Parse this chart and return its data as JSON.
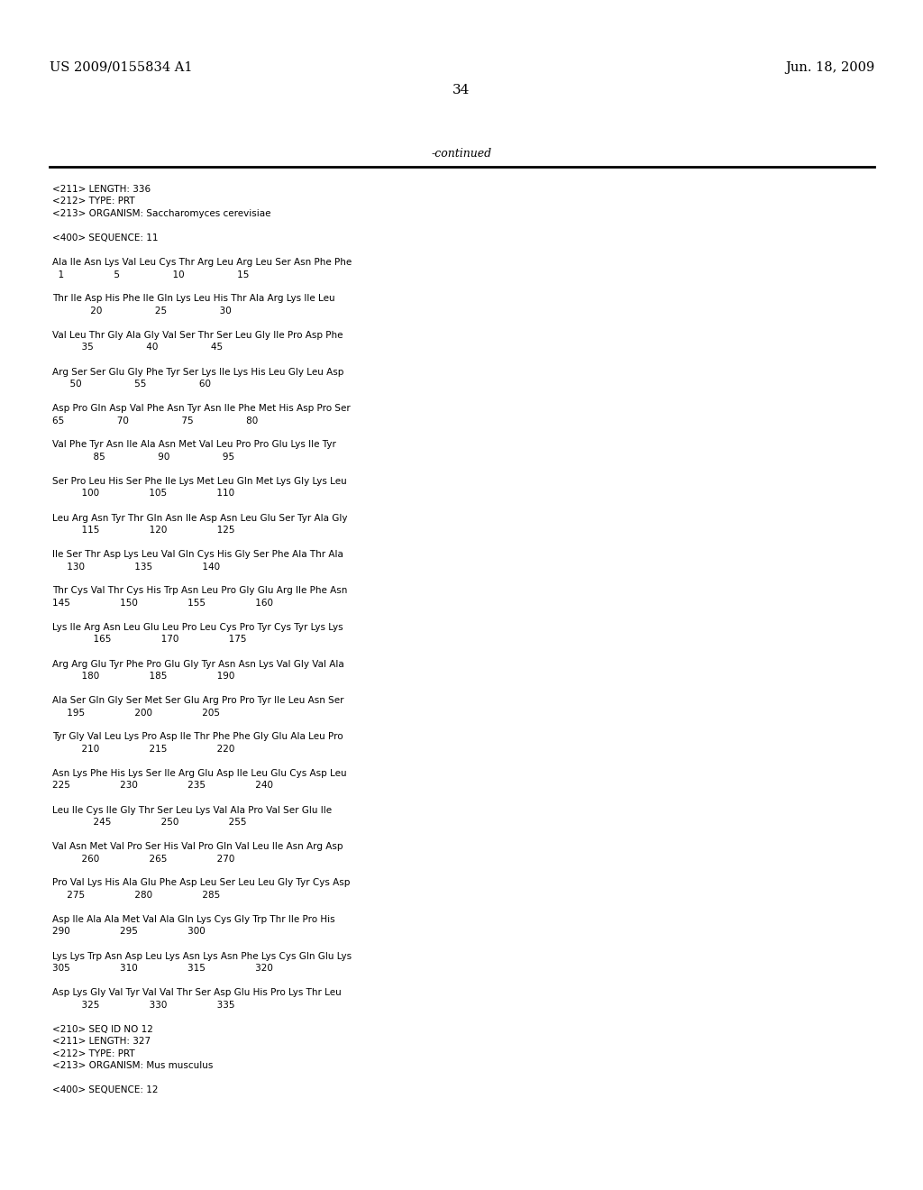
{
  "bg_color": "#ffffff",
  "header_left": "US 2009/0155834 A1",
  "header_right": "Jun. 18, 2009",
  "page_number": "34",
  "continued_text": "-continued",
  "header_fontsize": 10.5,
  "page_num_fontsize": 11,
  "continued_fontsize": 9,
  "body_fontsize": 7.5,
  "lines": [
    "<211> LENGTH: 336",
    "<212> TYPE: PRT",
    "<213> ORGANISM: Saccharomyces cerevisiae",
    "",
    "<400> SEQUENCE: 11",
    "",
    "Ala Ile Asn Lys Val Leu Cys Thr Arg Leu Arg Leu Ser Asn Phe Phe",
    "  1                 5                  10                  15",
    "",
    "Thr Ile Asp His Phe Ile Gln Lys Leu His Thr Ala Arg Lys Ile Leu",
    "             20                  25                  30",
    "",
    "Val Leu Thr Gly Ala Gly Val Ser Thr Ser Leu Gly Ile Pro Asp Phe",
    "          35                  40                  45",
    "",
    "Arg Ser Ser Glu Gly Phe Tyr Ser Lys Ile Lys His Leu Gly Leu Asp",
    "      50                  55                  60",
    "",
    "Asp Pro Gln Asp Val Phe Asn Tyr Asn Ile Phe Met His Asp Pro Ser",
    "65                  70                  75                  80",
    "",
    "Val Phe Tyr Asn Ile Ala Asn Met Val Leu Pro Pro Glu Lys Ile Tyr",
    "              85                  90                  95",
    "",
    "Ser Pro Leu His Ser Phe Ile Lys Met Leu Gln Met Lys Gly Lys Leu",
    "          100                 105                 110",
    "",
    "Leu Arg Asn Tyr Thr Gln Asn Ile Asp Asn Leu Glu Ser Tyr Ala Gly",
    "          115                 120                 125",
    "",
    "Ile Ser Thr Asp Lys Leu Val Gln Cys His Gly Ser Phe Ala Thr Ala",
    "     130                 135                 140",
    "",
    "Thr Cys Val Thr Cys His Trp Asn Leu Pro Gly Glu Arg Ile Phe Asn",
    "145                 150                 155                 160",
    "",
    "Lys Ile Arg Asn Leu Glu Leu Pro Leu Cys Pro Tyr Cys Tyr Lys Lys",
    "              165                 170                 175",
    "",
    "Arg Arg Glu Tyr Phe Pro Glu Gly Tyr Asn Asn Lys Val Gly Val Ala",
    "          180                 185                 190",
    "",
    "Ala Ser Gln Gly Ser Met Ser Glu Arg Pro Pro Tyr Ile Leu Asn Ser",
    "     195                 200                 205",
    "",
    "Tyr Gly Val Leu Lys Pro Asp Ile Thr Phe Phe Gly Glu Ala Leu Pro",
    "          210                 215                 220",
    "",
    "Asn Lys Phe His Lys Ser Ile Arg Glu Asp Ile Leu Glu Cys Asp Leu",
    "225                 230                 235                 240",
    "",
    "Leu Ile Cys Ile Gly Thr Ser Leu Lys Val Ala Pro Val Ser Glu Ile",
    "              245                 250                 255",
    "",
    "Val Asn Met Val Pro Ser His Val Pro Gln Val Leu Ile Asn Arg Asp",
    "          260                 265                 270",
    "",
    "Pro Val Lys His Ala Glu Phe Asp Leu Ser Leu Leu Gly Tyr Cys Asp",
    "     275                 280                 285",
    "",
    "Asp Ile Ala Ala Met Val Ala Gln Lys Cys Gly Trp Thr Ile Pro His",
    "290                 295                 300",
    "",
    "Lys Lys Trp Asn Asp Leu Lys Asn Lys Asn Phe Lys Cys Gln Glu Lys",
    "305                 310                 315                 320",
    "",
    "Asp Lys Gly Val Tyr Val Val Thr Ser Asp Glu His Pro Lys Thr Leu",
    "          325                 330                 335",
    "",
    "<210> SEQ ID NO 12",
    "<211> LENGTH: 327",
    "<212> TYPE: PRT",
    "<213> ORGANISM: Mus musculus",
    "",
    "<400> SEQUENCE: 12"
  ]
}
